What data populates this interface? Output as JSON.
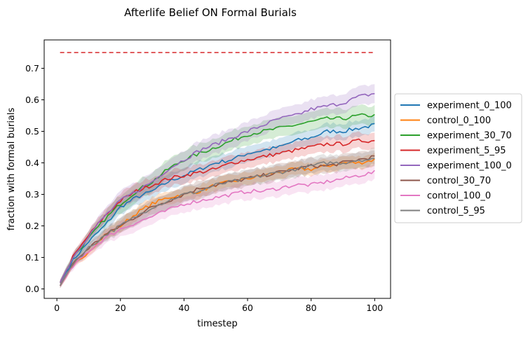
{
  "chart_data": {
    "type": "line",
    "title": "Afterlife Belief ON Formal Burials",
    "xlabel": "timestep",
    "ylabel": "fraction with formal burials",
    "xlim": [
      -4,
      105
    ],
    "ylim": [
      -0.03,
      0.79
    ],
    "x_ticks": [
      0,
      20,
      40,
      60,
      80,
      100
    ],
    "y_ticks": [
      0.0,
      0.1,
      0.2,
      0.3,
      0.4,
      0.5,
      0.6,
      0.7
    ],
    "grid": false,
    "legend_position": "center-right-outside",
    "reference_line": {
      "y": 0.75,
      "x": [
        1,
        100
      ],
      "style": "dashed",
      "color": "#d62728"
    },
    "x": [
      1,
      5,
      10,
      15,
      20,
      25,
      30,
      35,
      40,
      45,
      50,
      55,
      60,
      65,
      70,
      75,
      80,
      85,
      90,
      95,
      100
    ],
    "series": [
      {
        "name": "experiment_0_100",
        "color": "#1f77b4",
        "band": 0.025,
        "values": [
          0.02,
          0.09,
          0.15,
          0.2,
          0.26,
          0.29,
          0.31,
          0.34,
          0.36,
          0.38,
          0.4,
          0.41,
          0.43,
          0.44,
          0.45,
          0.47,
          0.48,
          0.5,
          0.5,
          0.51,
          0.52
        ]
      },
      {
        "name": "control_0_100",
        "color": "#ff7f0e",
        "band": 0.02,
        "values": [
          0.01,
          0.07,
          0.12,
          0.17,
          0.2,
          0.24,
          0.27,
          0.29,
          0.3,
          0.31,
          0.33,
          0.34,
          0.35,
          0.36,
          0.37,
          0.38,
          0.38,
          0.39,
          0.4,
          0.4,
          0.41
        ]
      },
      {
        "name": "experiment_30_70",
        "color": "#2ca02c",
        "band": 0.03,
        "values": [
          0.02,
          0.1,
          0.16,
          0.22,
          0.27,
          0.31,
          0.34,
          0.38,
          0.41,
          0.43,
          0.45,
          0.47,
          0.49,
          0.5,
          0.51,
          0.52,
          0.53,
          0.54,
          0.54,
          0.55,
          0.55
        ]
      },
      {
        "name": "experiment_5_95",
        "color": "#d62728",
        "band": 0.025,
        "values": [
          0.02,
          0.1,
          0.17,
          0.23,
          0.28,
          0.31,
          0.33,
          0.35,
          0.36,
          0.37,
          0.38,
          0.4,
          0.41,
          0.42,
          0.43,
          0.44,
          0.45,
          0.46,
          0.46,
          0.47,
          0.47
        ]
      },
      {
        "name": "experiment_100_0",
        "color": "#9467bd",
        "band": 0.03,
        "values": [
          0.02,
          0.1,
          0.17,
          0.23,
          0.28,
          0.31,
          0.34,
          0.38,
          0.41,
          0.44,
          0.46,
          0.48,
          0.5,
          0.52,
          0.54,
          0.55,
          0.57,
          0.58,
          0.59,
          0.61,
          0.62
        ]
      },
      {
        "name": "control_30_70",
        "color": "#8c564b",
        "band": 0.025,
        "values": [
          0.01,
          0.08,
          0.13,
          0.17,
          0.2,
          0.23,
          0.26,
          0.28,
          0.3,
          0.32,
          0.33,
          0.34,
          0.35,
          0.36,
          0.37,
          0.38,
          0.39,
          0.39,
          0.4,
          0.41,
          0.42
        ]
      },
      {
        "name": "control_100_0",
        "color": "#e377c2",
        "band": 0.025,
        "values": [
          0.01,
          0.07,
          0.12,
          0.16,
          0.19,
          0.21,
          0.23,
          0.25,
          0.27,
          0.28,
          0.29,
          0.3,
          0.31,
          0.31,
          0.32,
          0.33,
          0.33,
          0.34,
          0.35,
          0.36,
          0.37
        ]
      },
      {
        "name": "control_5_95",
        "color": "#7f7f7f",
        "band": 0.025,
        "values": [
          0.01,
          0.08,
          0.13,
          0.17,
          0.2,
          0.23,
          0.26,
          0.28,
          0.3,
          0.31,
          0.33,
          0.34,
          0.35,
          0.36,
          0.37,
          0.38,
          0.39,
          0.4,
          0.4,
          0.41,
          0.41
        ]
      }
    ]
  }
}
